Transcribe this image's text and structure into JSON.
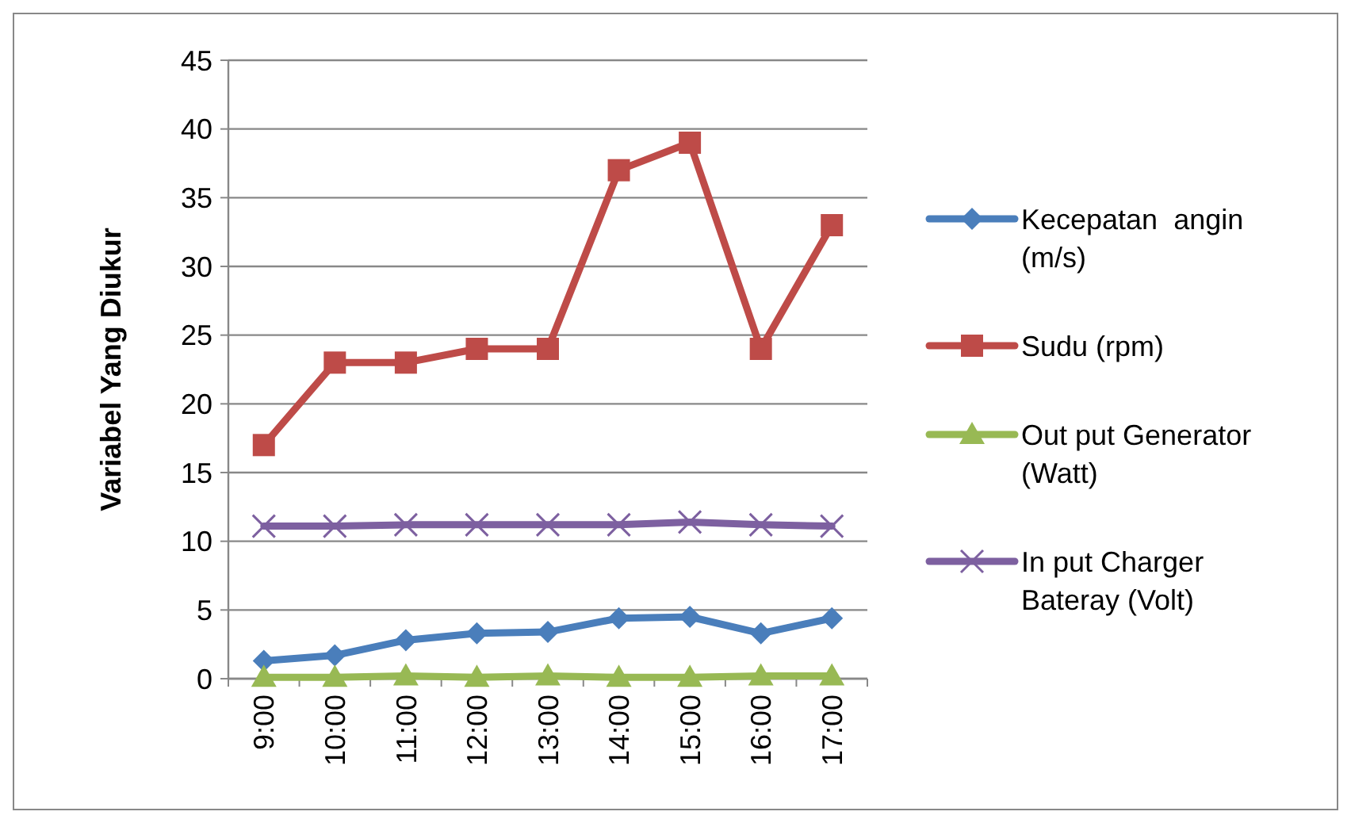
{
  "chart_data": {
    "type": "line",
    "ylabel": "Variabel Yang Diukur",
    "categories": [
      "9:00",
      "10:00",
      "11:00",
      "12:00",
      "13:00",
      "14:00",
      "15:00",
      "16:00",
      "17:00"
    ],
    "series": [
      {
        "name": "Kecepatan  angin (m/s)",
        "color": "#4a7ebb",
        "marker": "diamond",
        "values": [
          1.3,
          1.7,
          2.8,
          3.3,
          3.4,
          4.4,
          4.5,
          3.3,
          4.4
        ]
      },
      {
        "name": "Sudu (rpm)",
        "color": "#be4b48",
        "marker": "square",
        "values": [
          17,
          23,
          23,
          24,
          24,
          37,
          39,
          24,
          33
        ]
      },
      {
        "name": "Out put Generator (Watt)",
        "color": "#98b954",
        "marker": "triangle",
        "values": [
          0.1,
          0.1,
          0.2,
          0.1,
          0.2,
          0.1,
          0.1,
          0.2,
          0.2
        ]
      },
      {
        "name": "In put Charger Bateray (Volt)",
        "color": "#7d60a0",
        "marker": "cross",
        "values": [
          11.1,
          11.1,
          11.2,
          11.2,
          11.2,
          11.2,
          11.4,
          11.2,
          11.1
        ]
      }
    ],
    "ylim": [
      0,
      45
    ],
    "yticks": [
      0,
      5,
      10,
      15,
      20,
      25,
      30,
      35,
      40,
      45
    ],
    "grid": "y",
    "legend": "right"
  }
}
